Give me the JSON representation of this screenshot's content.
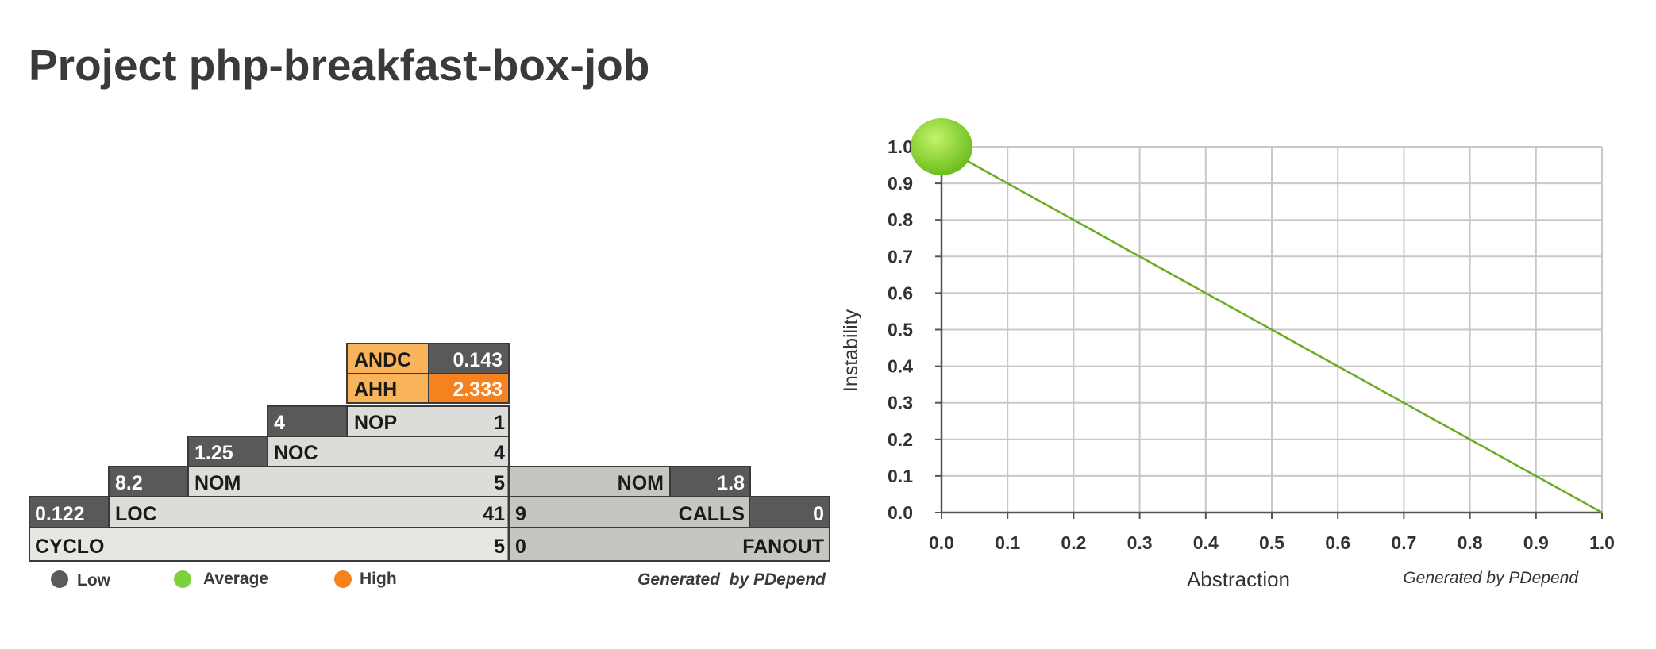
{
  "page": {
    "title": "Project php-breakfast-box-job"
  },
  "pyramid": {
    "rows": {
      "andc": {
        "label": "ANDC",
        "ratio": "0.143"
      },
      "ahh": {
        "label": "AHH",
        "ratio": "2.333"
      },
      "nop": {
        "label": "NOP",
        "ratio": "4",
        "value": "1"
      },
      "noc": {
        "label": "NOC",
        "ratio": "1.25",
        "value": "4"
      },
      "nom": {
        "label": "NOM",
        "ratio": "8.2",
        "value": "5"
      },
      "loc": {
        "label": "LOC",
        "ratio": "0.122",
        "value": "41"
      },
      "cyclo": {
        "label": "CYCLO",
        "value": "5"
      },
      "nom_right": {
        "label": "NOM",
        "ratio": "1.8"
      },
      "calls": {
        "label": "CALLS",
        "value": "9",
        "ratio": "0"
      },
      "fanout": {
        "label": "FANOUT",
        "value": "0"
      }
    },
    "legend": {
      "low": {
        "label": "Low",
        "color": "#5b5b5b"
      },
      "average": {
        "label": "Average",
        "color": "#7fd13b"
      },
      "high": {
        "label": "High",
        "color": "#f5821f"
      }
    },
    "generated_by": "Generated  by PDepend",
    "colors": {
      "dark": "#595959",
      "light": "#dcddd8",
      "lighter": "#e6e7e2",
      "mid": "#c5c6c1",
      "orange_light": "#f9b35a",
      "orange": "#f5821f"
    }
  },
  "chart_data": {
    "type": "scatter",
    "xlabel": "Abstraction",
    "ylabel": "Instability",
    "xlim": [
      0,
      1
    ],
    "ylim": [
      0,
      1
    ],
    "x_ticks": [
      "0.0",
      "0.1",
      "0.2",
      "0.3",
      "0.4",
      "0.5",
      "0.6",
      "0.7",
      "0.8",
      "0.9",
      "1.0"
    ],
    "y_ticks": [
      "0.0",
      "0.1",
      "0.2",
      "0.3",
      "0.4",
      "0.5",
      "0.6",
      "0.7",
      "0.8",
      "0.9",
      "1.0"
    ],
    "main_sequence": {
      "x": [
        0,
        1
      ],
      "y": [
        1,
        0
      ]
    },
    "points": [
      {
        "x": 0.0,
        "y": 1.0,
        "category": "average"
      }
    ],
    "grid": true,
    "colors": {
      "line": "#6aab22",
      "grid": "#c8c8c8",
      "axis": "#555555",
      "point": "#9cdf3a"
    },
    "generated_by": "Generated by PDepend"
  }
}
